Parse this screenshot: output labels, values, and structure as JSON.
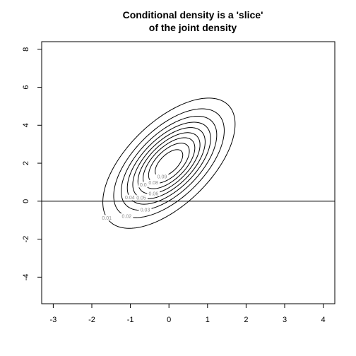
{
  "chart_data": {
    "type": "contour",
    "title": [
      "Conditional density is a 'slice'",
      "of the joint density"
    ],
    "xlabel": "",
    "ylabel": "",
    "xlim": [
      -3.3,
      4.3
    ],
    "ylim": [
      -5.4,
      8.4
    ],
    "x_ticks": [
      -3,
      -2,
      -1,
      0,
      1,
      2,
      3,
      4
    ],
    "y_ticks": [
      -4,
      -2,
      0,
      2,
      4,
      6,
      8
    ],
    "distribution": {
      "mean": [
        0,
        2
      ],
      "sd_x": 1,
      "sd_y": 2,
      "rho": 0.6
    },
    "contour_levels": [
      {
        "level": 0.01,
        "label": "0.01"
      },
      {
        "level": 0.02,
        "label": "0.02"
      },
      {
        "level": 0.03,
        "label": "0.03"
      },
      {
        "level": 0.04,
        "label": "0.04"
      },
      {
        "level": 0.05,
        "label": "0.05"
      },
      {
        "level": 0.06,
        "label": "0.06"
      },
      {
        "level": 0.07,
        "label": "0.07"
      },
      {
        "level": 0.08,
        "label": "0.08"
      },
      {
        "level": 0.09,
        "label": "0.09"
      }
    ],
    "horizontal_line": {
      "y": 0
    },
    "box": true,
    "grid": false
  }
}
